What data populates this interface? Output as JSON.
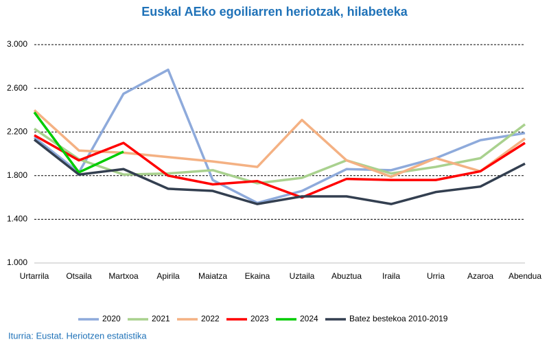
{
  "chart_data": {
    "type": "line",
    "title": "Euskal AEko egoiliarren heriotzak, hilabeteka",
    "source": "Iturria: Eustat. Heriotzen estatistika",
    "categories": [
      "Urtarrila",
      "Otsaila",
      "Martxoa",
      "Apirila",
      "Maiatza",
      "Ekaina",
      "Uztaila",
      "Abuztua",
      "Iraila",
      "Urria",
      "Azaroa",
      "Abendua"
    ],
    "ylim": [
      1000,
      3000
    ],
    "yticks": [
      {
        "value": 1000,
        "label": "1.000"
      },
      {
        "value": 1400,
        "label": "1.400"
      },
      {
        "value": 1800,
        "label": "1.800"
      },
      {
        "value": 2200,
        "label": "2.200"
      },
      {
        "value": 2600,
        "label": "2.600"
      },
      {
        "value": 3000,
        "label": "3.000"
      }
    ],
    "grid": true,
    "legend": "bottom",
    "series": [
      {
        "name": "2020",
        "color": "#8eaadb",
        "values": [
          2150,
          1830,
          2550,
          2770,
          1760,
          1550,
          1660,
          1860,
          1850,
          1960,
          2125,
          2190
        ]
      },
      {
        "name": "2021",
        "color": "#a9d18e",
        "values": [
          2230,
          1950,
          1810,
          1820,
          1850,
          1730,
          1780,
          1940,
          1820,
          1880,
          1960,
          2270
        ]
      },
      {
        "name": "2022",
        "color": "#f4b183",
        "values": [
          2400,
          2030,
          2010,
          1970,
          1930,
          1880,
          2310,
          1940,
          1790,
          1960,
          1840,
          2140
        ]
      },
      {
        "name": "2023",
        "color": "#ff0000",
        "values": [
          2170,
          1940,
          2100,
          1800,
          1720,
          1750,
          1600,
          1770,
          1760,
          1760,
          1840,
          2100
        ]
      },
      {
        "name": "2024",
        "color": "#00cc00",
        "values": [
          2380,
          1830,
          2020,
          null,
          null,
          null,
          null,
          null,
          null,
          null,
          null,
          null
        ]
      },
      {
        "name": "Batez bestekoa 2010-2019",
        "color": "#333f50",
        "values": [
          2130,
          1810,
          1860,
          1680,
          1660,
          1540,
          1610,
          1610,
          1540,
          1650,
          1700,
          1910
        ]
      }
    ]
  }
}
